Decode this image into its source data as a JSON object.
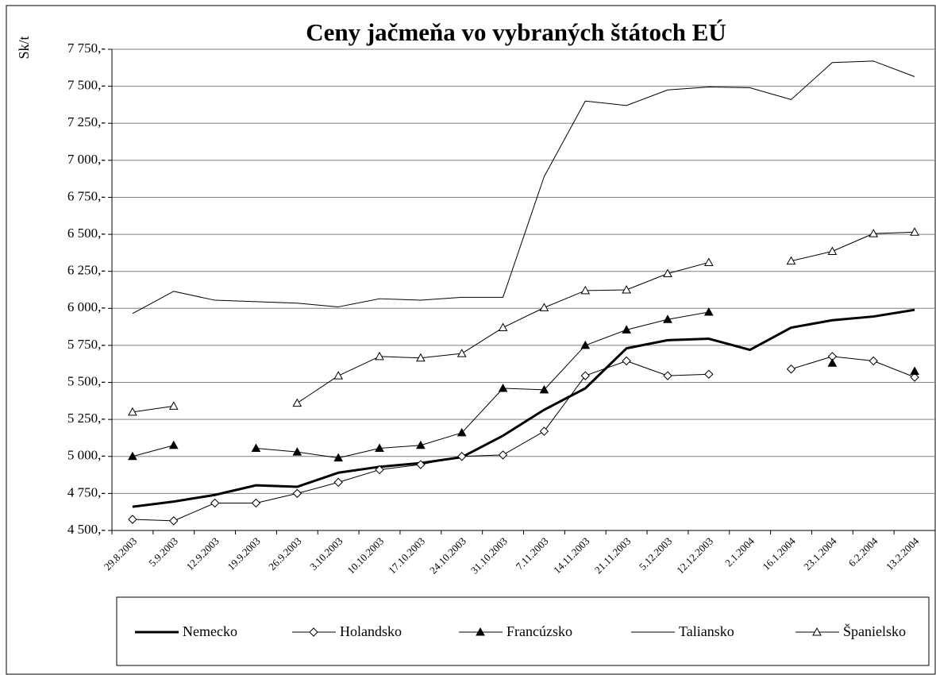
{
  "chart_data": {
    "type": "line",
    "title": "Ceny jačmeňa vo vybraných štátoch EÚ",
    "y_label": "Sk/t",
    "categories": [
      "29.8.2003",
      "5.9.2003",
      "12.9.2003",
      "19.9.2003",
      "26.9.2003",
      "3.10.2003",
      "10.10.2003",
      "17.10.2003",
      "24.10.2003",
      "31.10.2003",
      "7.11.2003",
      "14.11.2003",
      "21.11.2003",
      "5.12.2003",
      "12.12.2003",
      "2.1.2004",
      "16.1.2004",
      "23.1.2004",
      "6.2.2004",
      "13.2.2004"
    ],
    "series": [
      {
        "name": "Nemecko",
        "color": "#000000",
        "marker": "none",
        "line_width": 3,
        "values": [
          4660,
          4695,
          4740,
          4805,
          4795,
          4890,
          4930,
          4955,
          4995,
          5140,
          5315,
          5460,
          5730,
          5785,
          5795,
          5720,
          5870,
          5920,
          5945,
          5990
        ]
      },
      {
        "name": "Holandsko",
        "color": "#000000",
        "marker": "diamond",
        "line_width": 1,
        "values": [
          4575,
          4565,
          4685,
          4685,
          4750,
          4825,
          4910,
          4945,
          5000,
          5010,
          5170,
          5545,
          5645,
          5545,
          5555,
          null,
          5590,
          5675,
          5645,
          5535
        ]
      },
      {
        "name": "Francúzsko",
        "color": "#000000",
        "marker": "triangle-filled",
        "line_width": 1,
        "values": [
          5000,
          5075,
          null,
          5055,
          5030,
          4990,
          5055,
          5075,
          5160,
          5460,
          5450,
          5750,
          5855,
          5925,
          5975,
          null,
          null,
          5630,
          null,
          5575
        ]
      },
      {
        "name": "Taliansko",
        "color": "#000000",
        "marker": "none",
        "line_width": 1,
        "values": [
          5965,
          6115,
          6055,
          6045,
          6035,
          6010,
          6065,
          6055,
          6075,
          6075,
          6890,
          7400,
          7370,
          7475,
          7495,
          7490,
          7410,
          7660,
          7670,
          7565
        ]
      },
      {
        "name": "Španielsko",
        "color": "#000000",
        "marker": "triangle-open",
        "line_width": 1,
        "values": [
          5300,
          5340,
          null,
          null,
          5360,
          5545,
          5675,
          5665,
          5695,
          5870,
          6005,
          6120,
          6125,
          6235,
          6310,
          null,
          6320,
          6385,
          6505,
          6515
        ]
      }
    ],
    "ylim": [
      4500,
      7750
    ],
    "yticks": [
      {
        "value": 4500,
        "label": "4 500,-"
      },
      {
        "value": 4750,
        "label": "4 750,-"
      },
      {
        "value": 5000,
        "label": "5 000,-"
      },
      {
        "value": 5250,
        "label": "5 250,-"
      },
      {
        "value": 5500,
        "label": "5 500,-"
      },
      {
        "value": 5750,
        "label": "5 750,-"
      },
      {
        "value": 6000,
        "label": "6 000,-"
      },
      {
        "value": 6250,
        "label": "6 250,-"
      },
      {
        "value": 6500,
        "label": "6 500,-"
      },
      {
        "value": 6750,
        "label": "6 750,-"
      },
      {
        "value": 7000,
        "label": "7 000,-"
      },
      {
        "value": 7250,
        "label": "7 250,-"
      },
      {
        "value": 7500,
        "label": "7 500,-"
      },
      {
        "value": 7750,
        "label": "7 750,-"
      }
    ],
    "grid": true,
    "legend": "bottom"
  }
}
